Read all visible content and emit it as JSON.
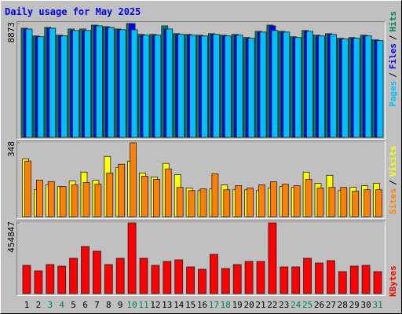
{
  "chart_data": [
    {
      "type": "bar",
      "title": "Daily usage for May 2025",
      "legend_separator": "/",
      "ylim": [
        0,
        8873
      ],
      "yticks": [
        8873
      ],
      "series": [
        {
          "name": "Hits",
          "color": "#00805c",
          "values": [
            8510,
            7907,
            8571,
            7968,
            8450,
            8450,
            8752,
            8631,
            8450,
            8873,
            8028,
            8028,
            8692,
            8088,
            8028,
            7968,
            8088,
            7968,
            8028,
            7786,
            8269,
            8752,
            8269,
            7847,
            8330,
            7968,
            8088,
            7726,
            7786,
            7968,
            7605
          ]
        },
        {
          "name": "Files",
          "color": "#0000ff",
          "values": [
            8450,
            7847,
            8511,
            7907,
            8330,
            8330,
            8692,
            8571,
            8390,
            8873,
            7968,
            7968,
            8450,
            8028,
            7968,
            7907,
            8028,
            7907,
            7968,
            7726,
            8209,
            8692,
            8209,
            7786,
            8269,
            7907,
            8028,
            7666,
            7726,
            7907,
            7545
          ]
        },
        {
          "name": "Pages",
          "color": "#00c0ff",
          "values": [
            8450,
            7847,
            8511,
            7907,
            8330,
            8330,
            8692,
            8571,
            8390,
            8390,
            7968,
            7968,
            8450,
            8028,
            7968,
            7907,
            8028,
            7907,
            7968,
            7726,
            8209,
            8330,
            8209,
            7786,
            8269,
            7907,
            8028,
            7666,
            7726,
            7907,
            7545
          ]
        }
      ]
    },
    {
      "type": "bar",
      "legend_separator": "/",
      "ylim": [
        0,
        348
      ],
      "yticks": [
        348
      ],
      "series": [
        {
          "name": "Visits",
          "color": "#ffff00",
          "values": [
            273,
            127,
            150,
            142,
            168,
            210,
            172,
            284,
            232,
            262,
            206,
            187,
            251,
            198,
            135,
            123,
            131,
            150,
            127,
            127,
            123,
            135,
            142,
            138,
            210,
            157,
            195,
            123,
            138,
            146,
            157
          ]
        },
        {
          "name": "Sites",
          "color": "#ff8000",
          "values": [
            262,
            172,
            165,
            142,
            150,
            161,
            153,
            206,
            247,
            348,
            191,
            176,
            225,
            138,
            123,
            131,
            202,
            127,
            146,
            135,
            150,
            165,
            153,
            146,
            176,
            135,
            138,
            138,
            120,
            127,
            127
          ]
        }
      ]
    },
    {
      "type": "bar",
      "ylim": [
        0,
        454847
      ],
      "yticks": [
        454847
      ],
      "categories": [
        "1",
        "2",
        "3",
        "4",
        "5",
        "6",
        "7",
        "8",
        "9",
        "10",
        "11",
        "12",
        "13",
        "14",
        "15",
        "16",
        "17",
        "18",
        "19",
        "20",
        "21",
        "22",
        "23",
        "24",
        "25",
        "26",
        "27",
        "28",
        "29",
        "30",
        "31"
      ],
      "category_colors": [
        "#000000",
        "#000000",
        "#00805c",
        "#00805c",
        "#000000",
        "#000000",
        "#000000",
        "#000000",
        "#000000",
        "#00805c",
        "#00805c",
        "#000000",
        "#000000",
        "#000000",
        "#000000",
        "#000000",
        "#00805c",
        "#00805c",
        "#000000",
        "#000000",
        "#000000",
        "#000000",
        "#000000",
        "#00805c",
        "#00805c",
        "#000000",
        "#000000",
        "#000000",
        "#000000",
        "#000000",
        "#00805c"
      ],
      "series": [
        {
          "name": "KBytes",
          "color": "#ff0000",
          "values": [
            181940,
            146563,
            186994,
            176886,
            227425,
            303233,
            272910,
            186994,
            227425,
            454847,
            227425,
            181940,
            207210,
            217317,
            171832,
            156670,
            252694,
            161724,
            186994,
            207210,
            207210,
            454847,
            171832,
            171832,
            227425,
            197101,
            212263,
            141509,
            176886,
            181940,
            141509
          ]
        }
      ]
    }
  ]
}
